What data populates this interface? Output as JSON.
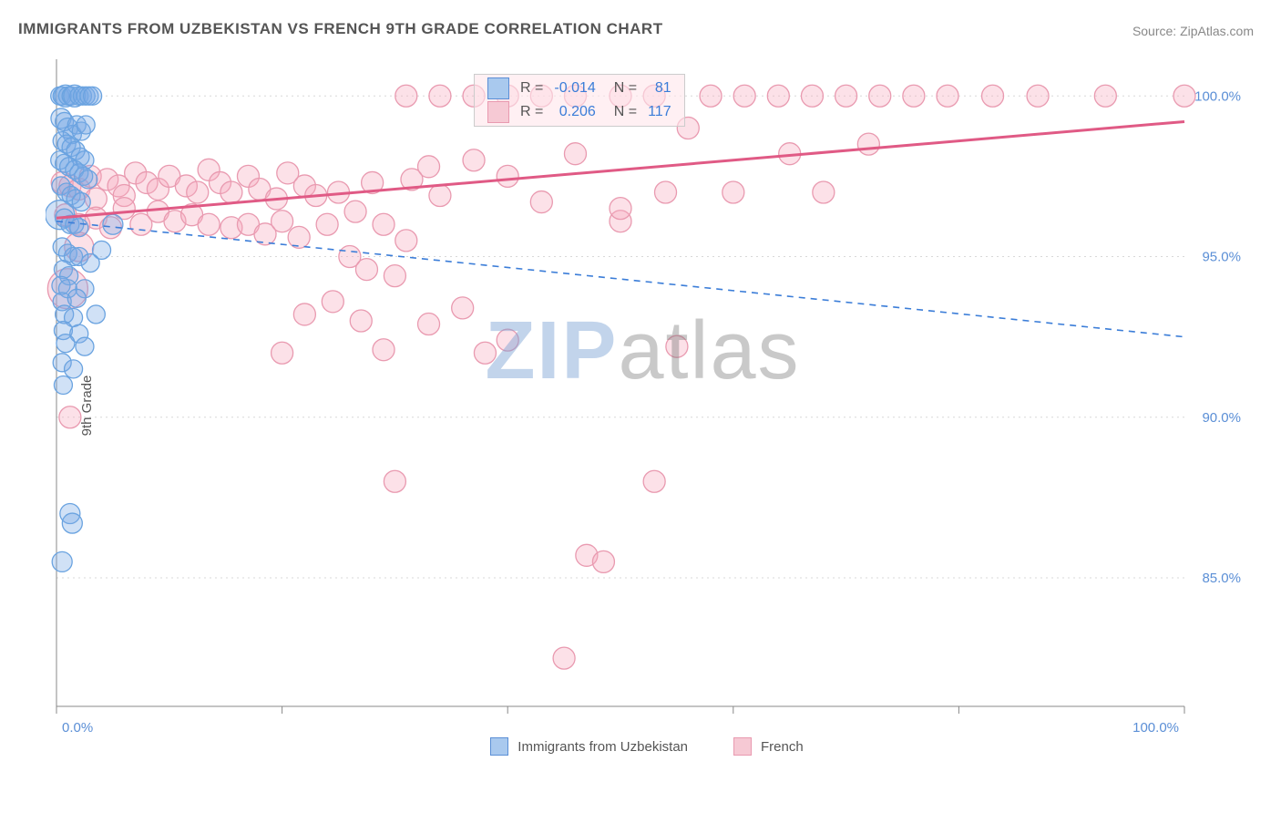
{
  "title": "IMMIGRANTS FROM UZBEKISTAN VS FRENCH 9TH GRADE CORRELATION CHART",
  "source_label": "Source: ZipAtlas.com",
  "ylabel": "9th Grade",
  "watermark": {
    "zip": "ZIP",
    "atlas": "atlas"
  },
  "type": "scatter",
  "background_color": "#ffffff",
  "grid_color": "#d8d8d8",
  "axis_color": "#888888",
  "tick_label_color": "#5b8fd6",
  "tick_fontsize": 15,
  "title_fontsize": 17,
  "label_fontsize": 15,
  "x": {
    "min": 0,
    "max": 100,
    "tick_step": 20,
    "labels": {
      "0": "0.0%",
      "100": "100.0%"
    }
  },
  "y": {
    "min": 81,
    "max": 101,
    "gridlines": [
      85,
      90,
      95,
      100
    ],
    "labels": {
      "85": "85.0%",
      "90": "90.0%",
      "95": "95.0%",
      "100": "100.0%"
    }
  },
  "series": [
    {
      "id": "uzbekistan",
      "label": "Immigrants from Uzbekistan",
      "fill": "rgba(120,170,230,0.35)",
      "stroke": "#6aa3e0",
      "swatch_fill": "#a9c9ee",
      "swatch_border": "#5b8fd6",
      "R": "-0.014",
      "N": "81",
      "trend": {
        "y_at_x0": 96.1,
        "y_at_x100": 92.5,
        "style": "dashed",
        "color": "#3b7dd8",
        "width": 1.6
      },
      "marker_r_default": 11,
      "points": [
        [
          0.3,
          100,
          10
        ],
        [
          0.5,
          100,
          10
        ],
        [
          0.8,
          100,
          12
        ],
        [
          1.0,
          100,
          10
        ],
        [
          1.3,
          100,
          10
        ],
        [
          1.6,
          100,
          12
        ],
        [
          2.0,
          100,
          10
        ],
        [
          2.3,
          100,
          10
        ],
        [
          2.6,
          100,
          10
        ],
        [
          2.9,
          100,
          10
        ],
        [
          3.2,
          100,
          10
        ],
        [
          0.4,
          99.3,
          11
        ],
        [
          0.7,
          99.2,
          10
        ],
        [
          1.0,
          99.0,
          11
        ],
        [
          1.4,
          98.8,
          10
        ],
        [
          1.8,
          99.1,
          10
        ],
        [
          2.2,
          98.9,
          10
        ],
        [
          2.6,
          99.1,
          10
        ],
        [
          0.5,
          98.6,
          10
        ],
        [
          0.9,
          98.5,
          10
        ],
        [
          1.3,
          98.4,
          10
        ],
        [
          1.7,
          98.3,
          10
        ],
        [
          2.1,
          98.1,
          10
        ],
        [
          2.5,
          98.0,
          10
        ],
        [
          0.3,
          98.0,
          10
        ],
        [
          0.7,
          97.9,
          10
        ],
        [
          1.1,
          97.8,
          10
        ],
        [
          1.6,
          97.7,
          10
        ],
        [
          2.0,
          97.6,
          10
        ],
        [
          2.4,
          97.5,
          10
        ],
        [
          2.8,
          97.4,
          10
        ],
        [
          0.4,
          97.2,
          10
        ],
        [
          0.9,
          97.0,
          10
        ],
        [
          1.3,
          96.9,
          10
        ],
        [
          1.7,
          96.8,
          10
        ],
        [
          2.2,
          96.7,
          10
        ],
        [
          0.3,
          96.3,
          16
        ],
        [
          0.7,
          96.2,
          10
        ],
        [
          1.2,
          96.0,
          10
        ],
        [
          1.6,
          96.0,
          10
        ],
        [
          2.0,
          95.9,
          10
        ],
        [
          5.0,
          96.0,
          11
        ],
        [
          0.5,
          95.3,
          10
        ],
        [
          1.0,
          95.1,
          10
        ],
        [
          1.5,
          95.0,
          10
        ],
        [
          2.0,
          95.0,
          10
        ],
        [
          4.0,
          95.2,
          10
        ],
        [
          0.6,
          94.6,
          10
        ],
        [
          1.1,
          94.4,
          10
        ],
        [
          3.0,
          94.8,
          10
        ],
        [
          0.4,
          94.1,
          10
        ],
        [
          1.0,
          94.0,
          10
        ],
        [
          2.5,
          94.0,
          10
        ],
        [
          0.5,
          93.6,
          10
        ],
        [
          1.8,
          93.7,
          10
        ],
        [
          0.7,
          93.2,
          10
        ],
        [
          1.5,
          93.1,
          10
        ],
        [
          3.5,
          93.2,
          10
        ],
        [
          0.6,
          92.7,
          10
        ],
        [
          2.0,
          92.6,
          10
        ],
        [
          0.8,
          92.3,
          10
        ],
        [
          2.5,
          92.2,
          10
        ],
        [
          0.5,
          91.7,
          10
        ],
        [
          1.5,
          91.5,
          10
        ],
        [
          0.6,
          91.0,
          10
        ],
        [
          1.2,
          87.0,
          11
        ],
        [
          1.4,
          86.7,
          11
        ],
        [
          0.5,
          85.5,
          11
        ]
      ]
    },
    {
      "id": "french",
      "label": "French",
      "fill": "rgba(245,170,190,0.35)",
      "stroke": "#e99ab0",
      "swatch_fill": "#f6c9d4",
      "swatch_border": "#e99ab0",
      "R": "0.206",
      "N": "117",
      "trend": {
        "y_at_x0": 96.2,
        "y_at_x100": 99.2,
        "style": "solid",
        "color": "#e05a85",
        "width": 3
      },
      "marker_r_default": 12,
      "points": [
        [
          0.5,
          97.3,
          12
        ],
        [
          1.2,
          97.2,
          12
        ],
        [
          2.0,
          97.1,
          12
        ],
        [
          3.0,
          97.5,
          12
        ],
        [
          3.5,
          96.8,
          12
        ],
        [
          4.5,
          97.4,
          12
        ],
        [
          5.5,
          97.2,
          12
        ],
        [
          6.0,
          96.9,
          12
        ],
        [
          7.0,
          97.6,
          12
        ],
        [
          8.0,
          97.3,
          12
        ],
        [
          9.0,
          97.1,
          12
        ],
        [
          10.0,
          97.5,
          12
        ],
        [
          11.5,
          97.2,
          12
        ],
        [
          12.5,
          97.0,
          12
        ],
        [
          13.5,
          97.7,
          12
        ],
        [
          14.5,
          97.3,
          12
        ],
        [
          15.5,
          97.0,
          12
        ],
        [
          17.0,
          97.5,
          12
        ],
        [
          18.0,
          97.1,
          12
        ],
        [
          19.5,
          96.8,
          12
        ],
        [
          20.5,
          97.6,
          12
        ],
        [
          22.0,
          97.2,
          12
        ],
        [
          23.0,
          96.9,
          12
        ],
        [
          0.8,
          96.3,
          12
        ],
        [
          2.0,
          96.0,
          12
        ],
        [
          3.5,
          96.2,
          12
        ],
        [
          4.8,
          95.9,
          12
        ],
        [
          6.0,
          96.5,
          12
        ],
        [
          7.5,
          96.0,
          12
        ],
        [
          9.0,
          96.4,
          12
        ],
        [
          10.5,
          96.1,
          12
        ],
        [
          12.0,
          96.3,
          12
        ],
        [
          13.5,
          96.0,
          12
        ],
        [
          15.5,
          95.9,
          12
        ],
        [
          17.0,
          96.0,
          12
        ],
        [
          18.5,
          95.7,
          12
        ],
        [
          20.0,
          96.1,
          12
        ],
        [
          21.5,
          95.6,
          12
        ],
        [
          24.0,
          96.0,
          12
        ],
        [
          25.0,
          97.0,
          12
        ],
        [
          26.5,
          96.4,
          12
        ],
        [
          28.0,
          97.3,
          12
        ],
        [
          29.0,
          96.0,
          12
        ],
        [
          31.0,
          95.5,
          12
        ],
        [
          31.5,
          97.4,
          12
        ],
        [
          33.0,
          97.8,
          12
        ],
        [
          34.0,
          96.9,
          12
        ],
        [
          26.0,
          95.0,
          12
        ],
        [
          27.5,
          94.6,
          12
        ],
        [
          30.0,
          94.4,
          12
        ],
        [
          22.0,
          93.2,
          12
        ],
        [
          24.5,
          93.6,
          12
        ],
        [
          27.0,
          93.0,
          12
        ],
        [
          36.0,
          93.4,
          12
        ],
        [
          33.0,
          92.9,
          12
        ],
        [
          20.0,
          92.0,
          12
        ],
        [
          29.0,
          92.1,
          12
        ],
        [
          38.0,
          92.0,
          12
        ],
        [
          40.0,
          92.4,
          12
        ],
        [
          30.0,
          88.0,
          12
        ],
        [
          53.0,
          88.0,
          12
        ],
        [
          47.0,
          85.7,
          12
        ],
        [
          48.5,
          85.5,
          12
        ],
        [
          45.0,
          82.5,
          12
        ],
        [
          37.0,
          98.0,
          12
        ],
        [
          40.0,
          97.5,
          12
        ],
        [
          43.0,
          96.7,
          12
        ],
        [
          46.0,
          98.2,
          12
        ],
        [
          50.0,
          96.1,
          12
        ],
        [
          54.0,
          97.0,
          12
        ],
        [
          31.0,
          100,
          12
        ],
        [
          34.0,
          100,
          12
        ],
        [
          37.0,
          100,
          12
        ],
        [
          40.0,
          100,
          12
        ],
        [
          43.0,
          100,
          12
        ],
        [
          46.0,
          100,
          12
        ],
        [
          50.0,
          100,
          12
        ],
        [
          53.0,
          100,
          12
        ],
        [
          56.0,
          99.0,
          12
        ],
        [
          58.0,
          100,
          12
        ],
        [
          61.0,
          100,
          12
        ],
        [
          64.0,
          100,
          12
        ],
        [
          67.0,
          100,
          12
        ],
        [
          70.0,
          100,
          12
        ],
        [
          73.0,
          100,
          12
        ],
        [
          76.0,
          100,
          12
        ],
        [
          79.0,
          100,
          12
        ],
        [
          83.0,
          100,
          12
        ],
        [
          87.0,
          100,
          12
        ],
        [
          93.0,
          100,
          12
        ],
        [
          100.0,
          100,
          12
        ],
        [
          55.0,
          92.2,
          12
        ],
        [
          50.0,
          96.5,
          12
        ],
        [
          60.0,
          97.0,
          12
        ],
        [
          65.0,
          98.2,
          12
        ],
        [
          68.0,
          97.0,
          12
        ],
        [
          72.0,
          98.5,
          12
        ],
        [
          1.0,
          94.0,
          22
        ],
        [
          1.2,
          90.0,
          12
        ],
        [
          2.0,
          95.3,
          16
        ]
      ]
    }
  ],
  "stats_header": {
    "R_label": "R =",
    "N_label": "N ="
  },
  "legend_bottom": [
    {
      "ref": "uzbekistan"
    },
    {
      "ref": "french"
    }
  ]
}
